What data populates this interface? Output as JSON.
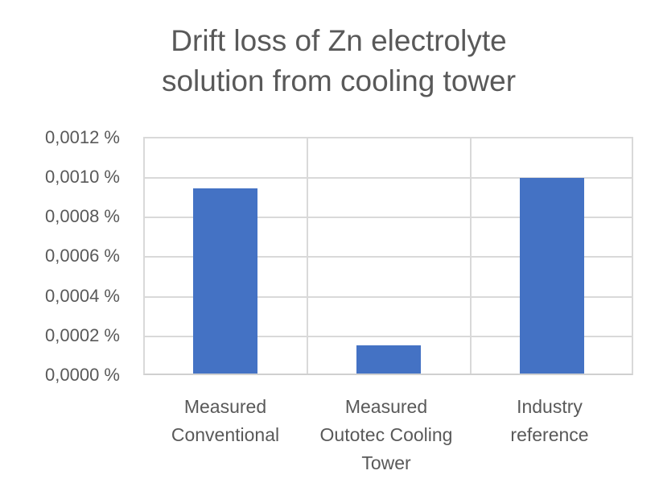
{
  "chart_data": {
    "type": "bar",
    "title": "Drift loss of Zn electrolyte solution from cooling tower",
    "title_lines": [
      "Drift loss of Zn electrolyte",
      "solution from cooling tower"
    ],
    "xlabel": "",
    "ylabel": "",
    "categories": [
      "Measured Conventional",
      "Measured Outotec Cooling Tower",
      "Industry reference"
    ],
    "category_lines": [
      [
        "Measured",
        "Conventional"
      ],
      [
        "Measured",
        "Outotec Cooling",
        "Tower"
      ],
      [
        "Industry",
        "reference"
      ]
    ],
    "values": [
      0.000945,
      0.000142,
      0.001
    ],
    "unit": "%",
    "ylim": [
      0,
      0.0012
    ],
    "yticks": [
      0,
      0.0002,
      0.0004,
      0.0006,
      0.0008,
      0.001,
      0.0012
    ],
    "ytick_labels": [
      "0,0000 %",
      "0,0002 %",
      "0,0004 %",
      "0,0006 %",
      "0,0008 %",
      "0,0010 %",
      "0,0012 %"
    ],
    "grid": true,
    "legend": "none",
    "bar_color": "#4472c4"
  }
}
